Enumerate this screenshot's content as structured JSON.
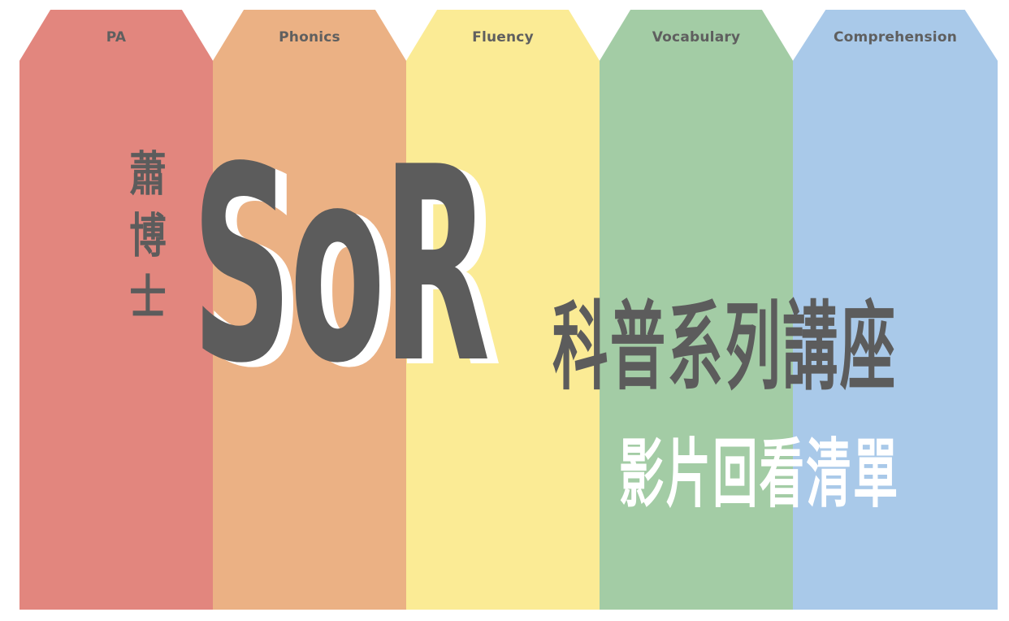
{
  "columns": [
    {
      "label": "PA",
      "color": "#e2867e"
    },
    {
      "label": "Phonics",
      "color": "#ebb184"
    },
    {
      "label": "Fluency",
      "color": "#fbeb95"
    },
    {
      "label": "Vocabulary",
      "color": "#a3cca5"
    },
    {
      "label": "Comprehension",
      "color": "#a9c9e9"
    }
  ],
  "title": {
    "vertical": "蕭博士",
    "main": "SoR",
    "series": "科普系列講座",
    "subtitle": "影片回看清單"
  },
  "colors": {
    "title_text": "#5c5c5c",
    "subtitle_text": "#ffffff",
    "label_text": "#5f5f5f"
  }
}
